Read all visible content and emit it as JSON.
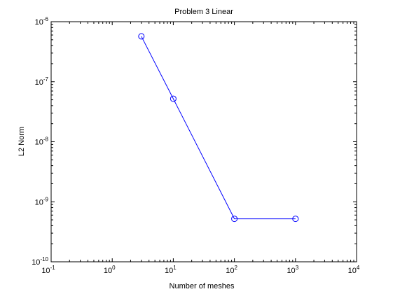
{
  "chart_data": {
    "type": "line",
    "title": "Problem 3 Linear",
    "xlabel": "Number of meshes",
    "ylabel": "L2 Norm",
    "x_scale": "log",
    "y_scale": "log",
    "xlim": [
      0.1,
      10000
    ],
    "ylim": [
      1e-10,
      1e-06
    ],
    "grid": false,
    "legend": "none",
    "x_tick_labels": [
      {
        "base": "10",
        "exp": "-1",
        "value": 0.1
      },
      {
        "base": "10",
        "exp": "0",
        "value": 1
      },
      {
        "base": "10",
        "exp": "1",
        "value": 10
      },
      {
        "base": "10",
        "exp": "2",
        "value": 100
      },
      {
        "base": "10",
        "exp": "3",
        "value": 1000
      },
      {
        "base": "10",
        "exp": "4",
        "value": 10000
      }
    ],
    "y_tick_labels": [
      {
        "base": "10",
        "exp": "-10",
        "value": 1e-10
      },
      {
        "base": "10",
        "exp": "-9",
        "value": 1e-09
      },
      {
        "base": "10",
        "exp": "-8",
        "value": 1e-08
      },
      {
        "base": "10",
        "exp": "-7",
        "value": 1e-07
      },
      {
        "base": "10",
        "exp": "-6",
        "value": 1e-06
      }
    ],
    "series": [
      {
        "x": [
          3,
          10,
          100,
          1000
        ],
        "y": [
          5.7e-07,
          5.2e-08,
          5.2e-10,
          5.2e-10
        ],
        "color": "#0000ff",
        "marker": "circle"
      }
    ]
  }
}
